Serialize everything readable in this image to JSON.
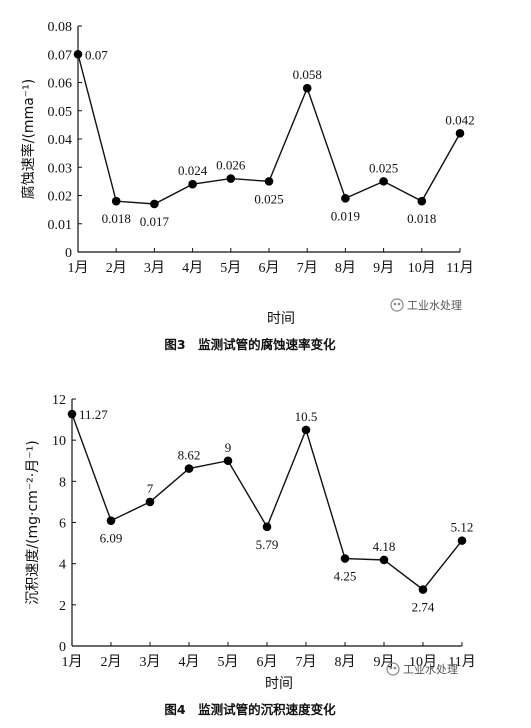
{
  "watermark": "工业水处理",
  "chart_data": [
    {
      "type": "line",
      "caption": "图3　监测试管的腐蚀速率变化",
      "xlabel": "时间",
      "ylabel": "腐蚀速率/(mma⁻¹)",
      "categories": [
        "1月",
        "2月",
        "3月",
        "4月",
        "5月",
        "6月",
        "7月",
        "8月",
        "9月",
        "10月",
        "11月"
      ],
      "values": [
        0.07,
        0.018,
        0.017,
        0.024,
        0.026,
        0.025,
        0.058,
        0.019,
        0.025,
        0.018,
        0.042
      ],
      "point_labels": [
        "0.07",
        "0.018",
        "0.017",
        "0.024",
        "0.026",
        "0.025",
        "0.058",
        "0.019",
        "0.025",
        "0.018",
        "0.042"
      ],
      "ylim": [
        0,
        0.08
      ],
      "yticks": [
        "0",
        "0.01",
        "0.02",
        "0.03",
        "0.04",
        "0.05",
        "0.06",
        "0.07",
        "0.08"
      ],
      "label_positions": [
        "right",
        "below",
        "below",
        "above",
        "above",
        "below",
        "above",
        "below",
        "above",
        "below",
        "above"
      ]
    },
    {
      "type": "line",
      "caption": "图4　监测试管的沉积速度变化",
      "xlabel": "时间",
      "ylabel": "沉积速度/(mg·cm⁻²·月⁻¹)",
      "categories": [
        "1月",
        "2月",
        "3月",
        "4月",
        "5月",
        "6月",
        "7月",
        "8月",
        "9月",
        "10月",
        "11月"
      ],
      "values": [
        11.27,
        6.09,
        7,
        8.62,
        9,
        5.79,
        10.5,
        4.25,
        4.18,
        2.74,
        5.12
      ],
      "point_labels": [
        "11.27",
        "6.09",
        "7",
        "8.62",
        "9",
        "5.79",
        "10.5",
        "4.25",
        "4.18",
        "2.74",
        "5.12"
      ],
      "ylim": [
        0,
        12
      ],
      "yticks": [
        "0",
        "2",
        "4",
        "6",
        "8",
        "10",
        "12"
      ],
      "label_positions": [
        "right",
        "below",
        "above",
        "above",
        "above",
        "below",
        "above",
        "below",
        "above",
        "below",
        "above"
      ]
    }
  ]
}
